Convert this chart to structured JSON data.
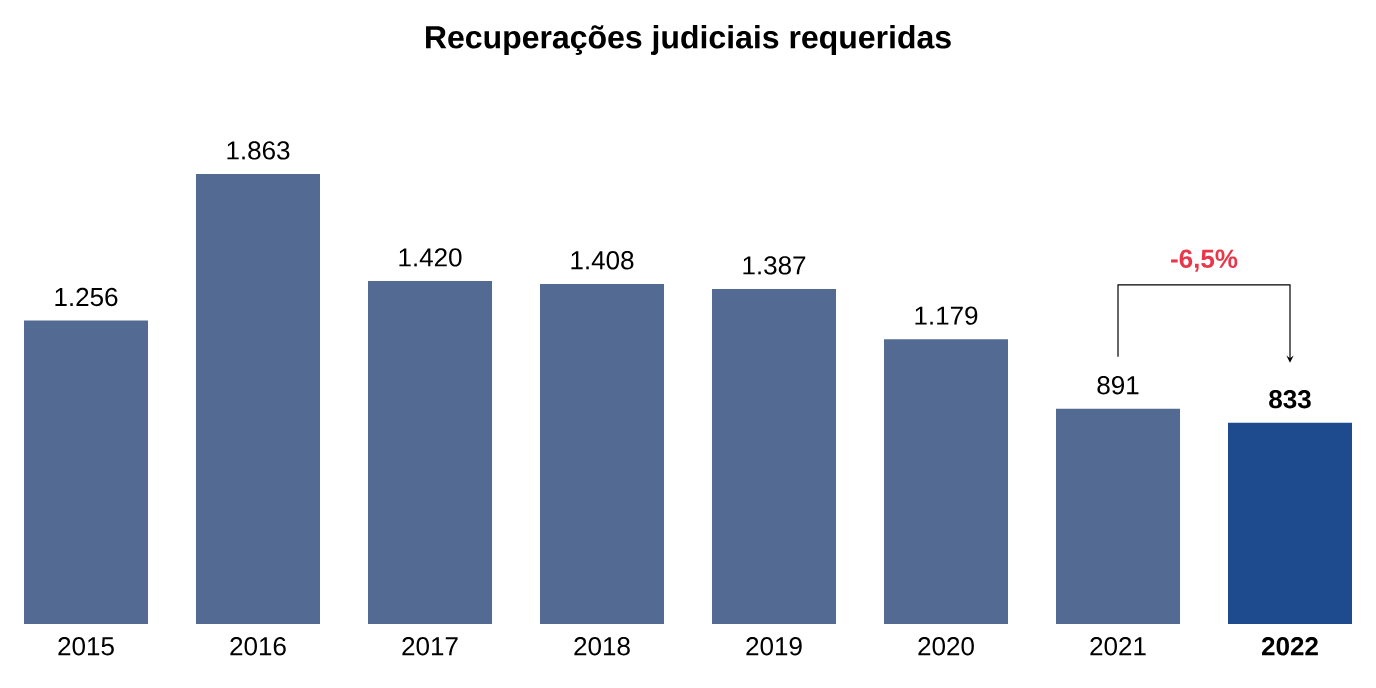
{
  "chart_data": {
    "type": "bar",
    "title": "Recuperações judiciais requeridas",
    "categories": [
      "2015",
      "2016",
      "2017",
      "2018",
      "2019",
      "2020",
      "2021",
      "2022"
    ],
    "values": [
      1256,
      1863,
      1420,
      1408,
      1387,
      1179,
      891,
      833
    ],
    "value_labels": [
      "1.256",
      "1.863",
      "1.420",
      "1.408",
      "1.387",
      "1.179",
      "891",
      "833"
    ],
    "colors": [
      "#536a93",
      "#536a93",
      "#536a93",
      "#536a93",
      "#536a93",
      "#536a93",
      "#536a93",
      "#1e4a8e"
    ],
    "annotations": [
      "-6,5%"
    ]
  }
}
